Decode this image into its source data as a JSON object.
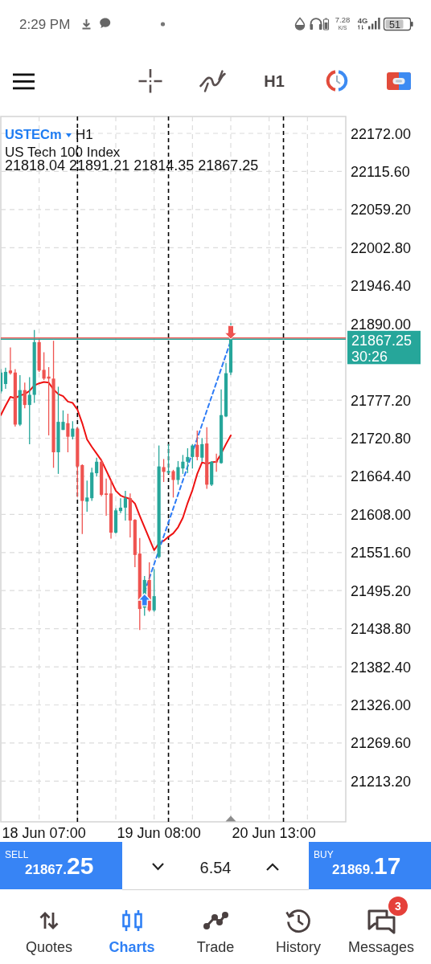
{
  "chart_data": [
    {
      "type": "other",
      "annotations": [
        "2:29 PM",
        "7.28",
        "K/S",
        "4G",
        "51",
        "H1"
      ]
    },
    {
      "type": "candlestick",
      "title": "USTECm",
      "subtitle": "US Tech 100 Index",
      "annotations": [
        "H1",
        "21818.04 21891.21 21814.35 21867.25",
        "30:26"
      ],
      "categories": [
        null,
        null,
        null,
        null,
        null,
        null,
        null,
        null,
        null,
        "18 Jun 07:00",
        null,
        null,
        null,
        null,
        null,
        null,
        null,
        null,
        null,
        null,
        null,
        null,
        null,
        null,
        null,
        null,
        null,
        null,
        null,
        null,
        null,
        null,
        null,
        "19 Jun 08:00",
        null,
        null,
        null,
        null,
        null,
        null,
        null,
        null,
        null,
        null,
        null,
        null,
        null,
        null,
        null,
        null,
        null,
        null,
        null,
        null,
        null,
        null,
        null,
        "20 Jun 13:00",
        null,
        null,
        null,
        null,
        null,
        null,
        null,
        null,
        null,
        null,
        null,
        null,
        null,
        null,
        null
      ],
      "ohlc": [
        [
          21790,
          21823,
          21787,
          21818
        ],
        [
          21801,
          21825,
          21794,
          21819
        ],
        [
          21821,
          21855,
          21815,
          21817
        ],
        [
          21818,
          21823,
          21738,
          21741
        ],
        [
          21741,
          21814,
          21739,
          21792
        ],
        [
          21792,
          21803,
          21765,
          21770
        ],
        [
          21770,
          21811,
          21712,
          21785
        ],
        [
          21785,
          21881,
          21773,
          21863
        ],
        [
          21863,
          21868,
          21819,
          21821
        ],
        [
          21822,
          21848,
          21807,
          21809
        ],
        [
          21812,
          21826,
          21725,
          21809
        ],
        [
          21809,
          21865,
          21677,
          21700
        ],
        [
          21700,
          21797,
          21668,
          21745
        ],
        [
          21733,
          21762,
          21733,
          21745
        ],
        [
          21743,
          21757,
          21700,
          21723
        ],
        [
          21723,
          21746,
          21719,
          21735
        ],
        [
          21735,
          21737,
          21634,
          21679
        ],
        [
          21681,
          21682,
          21579,
          21628
        ],
        [
          21627,
          21658,
          21612,
          21633
        ],
        [
          21632,
          21677,
          21628,
          21670
        ],
        [
          21669,
          21692,
          21664,
          21686
        ],
        [
          21686,
          21690,
          21635,
          21637
        ],
        [
          21639,
          21661,
          21606,
          21637
        ],
        [
          21639,
          21659,
          21572,
          21581
        ],
        [
          21581,
          21617,
          21580,
          21614
        ],
        [
          21613,
          21632,
          21610,
          21618
        ],
        [
          21618,
          21643,
          21599,
          21632
        ],
        [
          21632,
          21639,
          21574,
          21599
        ],
        [
          21600,
          21601,
          21530,
          21548
        ],
        [
          21550,
          21573,
          21437,
          21468
        ],
        [
          21470,
          21517,
          21458,
          21511
        ],
        [
          21511,
          21537,
          21464,
          21466
        ],
        [
          21466,
          21527,
          21464,
          21487
        ],
        [
          21545,
          21710,
          21543,
          21679
        ],
        [
          21678,
          21690,
          21656,
          21671
        ],
        [
          21670,
          21712,
          21668,
          21672
        ],
        [
          21672,
          21674,
          21633,
          21659
        ],
        [
          21659,
          21687,
          21652,
          21678
        ],
        [
          21676,
          21696,
          21668,
          21686
        ],
        [
          21686,
          21706,
          21669,
          21693
        ],
        [
          21693,
          21712,
          21676,
          21710
        ],
        [
          21711,
          21732,
          21688,
          21693
        ],
        [
          21692,
          21721,
          21686,
          21712
        ],
        [
          21713,
          21737,
          21646,
          21652
        ],
        [
          21652,
          21687,
          21650,
          21686
        ],
        [
          21687,
          21698,
          21671,
          21685
        ],
        [
          21684,
          21793,
          21683,
          21755
        ],
        [
          21753,
          21832,
          21752,
          21817
        ],
        [
          21818.04,
          21891.21,
          21814.35,
          21867.25
        ],
        null,
        null,
        null,
        null,
        null,
        null,
        null,
        null,
        null,
        null,
        null,
        null,
        null,
        null,
        null,
        null,
        null,
        null,
        null,
        null,
        null,
        null,
        null,
        null
      ],
      "colors": [
        "#26a69a",
        "#26a69a",
        "#ef5350",
        "#ef5350",
        "#26a69a",
        "#ef5350",
        "#26a69a",
        "#26a69a",
        "#ef5350",
        "#ef5350",
        "#ef5350",
        "#ef5350",
        "#26a69a",
        "#26a69a",
        "#ef5350",
        "#26a69a",
        "#ef5350",
        "#ef5350",
        "#26a69a",
        "#26a69a",
        "#26a69a",
        "#ef5350",
        "#ef5350",
        "#ef5350",
        "#26a69a",
        "#26a69a",
        "#26a69a",
        "#ef5350",
        "#ef5350",
        "#ef5350",
        "#26a69a",
        "#ef5350",
        "#26a69a",
        "#26a69a",
        "#ef5350",
        "#26a69a",
        "#ef5350",
        "#26a69a",
        "#26a69a",
        "#26a69a",
        "#26a69a",
        "#ef5350",
        "#26a69a",
        "#ef5350",
        "#26a69a",
        "#ef5350",
        "#26a69a",
        "#26a69a",
        "#26a69a",
        null,
        null,
        null,
        null,
        null,
        null,
        null,
        null,
        null,
        null,
        null,
        null,
        null,
        null,
        null,
        null,
        null,
        null,
        null,
        null,
        null,
        null,
        null,
        null
      ],
      "series": [
        {
          "type": "line",
          "color": "#ee1111",
          "values": [
            21755,
            21769,
            21782,
            21780,
            21784,
            21786,
            21791,
            21799,
            21802,
            21804,
            21803,
            21793,
            21786,
            21783,
            21775,
            21773,
            21763,
            21743,
            21719,
            21708,
            21698,
            21688,
            21673,
            21658,
            21643,
            21636,
            21633,
            21631,
            21624,
            21606,
            21589,
            21572,
            21555,
            21565,
            21569,
            21575,
            21580,
            21589,
            21603,
            21625,
            21644,
            21668,
            21685,
            21683,
            21685,
            21686,
            21698,
            21712,
            21725,
            null,
            null,
            null,
            null,
            null,
            null,
            null,
            null,
            null,
            null,
            null,
            null,
            null,
            null,
            null,
            null,
            null,
            null,
            null,
            null,
            null,
            null,
            null,
            null
          ]
        },
        {
          "type": "line",
          "color": "#2e7cf6",
          "line_style": "dashed",
          "values": [
            null,
            null,
            null,
            null,
            null,
            null,
            null,
            null,
            null,
            null,
            null,
            null,
            null,
            null,
            null,
            null,
            null,
            null,
            null,
            null,
            null,
            null,
            null,
            null,
            null,
            null,
            null,
            null,
            null,
            null,
            21493,
            null,
            null,
            null,
            null,
            null,
            null,
            null,
            null,
            null,
            null,
            null,
            null,
            null,
            null,
            null,
            null,
            null,
            21865,
            null,
            null,
            null,
            null,
            null,
            null,
            null,
            null,
            null,
            null,
            null,
            null,
            null,
            null,
            null,
            null,
            null,
            null,
            null,
            null,
            null,
            null,
            null,
            null
          ]
        }
      ],
      "ylim": [
        21153,
        22197
      ],
      "yticks": [
        {
          "value": 21213.2,
          "label": "21213.20"
        },
        {
          "value": 21269.6,
          "label": "21269.60"
        },
        {
          "value": 21326,
          "label": "21326.00"
        },
        {
          "value": 21382.4,
          "label": "21382.40"
        },
        {
          "value": 21438.8,
          "label": "21438.80"
        },
        {
          "value": 21495.2,
          "label": "21495.20"
        },
        {
          "value": 21551.6,
          "label": "21551.60"
        },
        {
          "value": 21608,
          "label": "21608.00"
        },
        {
          "value": 21664.4,
          "label": "21664.40"
        },
        {
          "value": 21720.8,
          "label": "21720.80"
        },
        {
          "value": 21777.2,
          "label": "21777.20"
        },
        {
          "value": 21833.6,
          "label": null
        },
        {
          "value": 21890,
          "label": "21890.00"
        },
        {
          "value": 21946.4,
          "label": "21946.40"
        },
        {
          "value": 22002.8,
          "label": "22002.80"
        },
        {
          "value": 22059.2,
          "label": "22059.20"
        },
        {
          "value": 22115.6,
          "label": "22115.60"
        },
        {
          "value": 22172,
          "label": "22172.00"
        }
      ],
      "grid": "y",
      "ref_lines": [
        {
          "axis": "y",
          "value": 21869.17,
          "color": "#ef5350"
        },
        {
          "axis": "y",
          "value": 21867.25,
          "label": "21867.25",
          "color": "#26a69a"
        }
      ]
    },
    {
      "type": "other",
      "annotations": [
        "SELL",
        "21867.25",
        "6.54",
        "BUY",
        "21869.17",
        "Quotes",
        "Charts",
        "Trade",
        "History",
        "Messages",
        "3"
      ]
    }
  ]
}
